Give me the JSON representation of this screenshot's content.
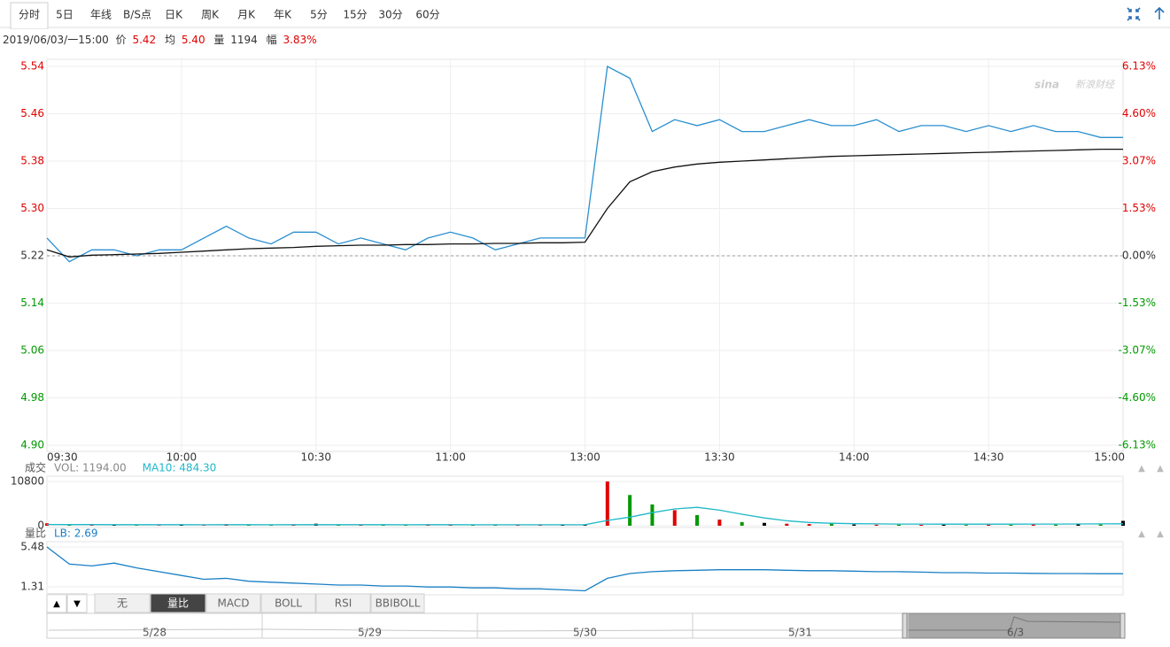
{
  "toolbar": {
    "tabs": [
      "分时",
      "5日",
      "年线",
      "B/S点",
      "日K",
      "周K",
      "月K",
      "年K",
      "5分",
      "15分",
      "30分",
      "60分"
    ],
    "active": 0
  },
  "info": {
    "datetime": "2019/06/03/一15:00",
    "price_label": "价",
    "price": "5.42",
    "avg_label": "均",
    "avg": "5.40",
    "volume_label": "量",
    "volume": "1194",
    "change_label": "幅",
    "change": "3.83%"
  },
  "watermark": "新浪财经",
  "chart_data": [
    {
      "type": "line",
      "categories": [
        "09:30",
        null,
        null,
        null,
        null,
        null,
        "10:00",
        null,
        null,
        null,
        null,
        null,
        "10:30",
        null,
        null,
        null,
        null,
        null,
        "11:00",
        null,
        null,
        null,
        null,
        null,
        "13:00",
        null,
        null,
        null,
        null,
        null,
        "13:30",
        null,
        null,
        null,
        null,
        null,
        "14:00",
        null,
        null,
        null,
        null,
        null,
        "14:30",
        null,
        null,
        null,
        null,
        null,
        "15:00"
      ],
      "series": [
        {
          "color": "#2a8fd0",
          "values": [
            5.25,
            5.21,
            5.23,
            5.23,
            5.22,
            5.23,
            5.23,
            5.25,
            5.27,
            5.25,
            5.24,
            5.26,
            5.26,
            5.24,
            5.25,
            5.24,
            5.23,
            5.25,
            5.26,
            5.25,
            5.23,
            5.24,
            5.25,
            5.25,
            5.25,
            5.54,
            5.52,
            5.43,
            5.45,
            5.44,
            5.45,
            5.43,
            5.43,
            5.44,
            5.45,
            5.44,
            5.44,
            5.45,
            5.43,
            5.44,
            5.44,
            5.43,
            5.44,
            5.43,
            5.44,
            5.43,
            5.43,
            5.42,
            5.42
          ]
        },
        {
          "color": "#111111",
          "values": [
            5.23,
            5.218,
            5.221,
            5.222,
            5.223,
            5.224,
            5.226,
            5.228,
            5.23,
            5.232,
            5.233,
            5.234,
            5.236,
            5.237,
            5.238,
            5.238,
            5.239,
            5.239,
            5.24,
            5.24,
            5.241,
            5.241,
            5.242,
            5.242,
            5.243,
            5.3,
            5.345,
            5.362,
            5.37,
            5.375,
            5.378,
            5.38,
            5.382,
            5.384,
            5.386,
            5.388,
            5.389,
            5.39,
            5.391,
            5.392,
            5.393,
            5.394,
            5.395,
            5.396,
            5.397,
            5.398,
            5.399,
            5.4,
            5.4
          ]
        }
      ],
      "baseline": 5.22,
      "ylim": [
        4.9,
        5.54
      ],
      "yticks": [
        5.54,
        5.46,
        5.38,
        {
          "value": 5.3,
          "label": "5.30"
        },
        5.22,
        5.14,
        5.06,
        4.98,
        {
          "value": 4.9,
          "label": "4.90"
        }
      ],
      "y2lim": [
        -6.13,
        6.13
      ],
      "y2ticks": [
        {
          "value": 6.13,
          "label": "6.13%"
        },
        {
          "value": 4.6,
          "label": "4.60%"
        },
        {
          "value": 3.07,
          "label": "3.07%"
        },
        {
          "value": 1.53,
          "label": "1.53%"
        },
        {
          "value": 0,
          "label": "0.00%"
        },
        {
          "value": -1.53,
          "label": "-1.53%"
        },
        {
          "value": -3.07,
          "label": "-3.07%"
        },
        {
          "value": -4.6,
          "label": "-4.60%"
        },
        {
          "value": -6.13,
          "label": "-6.13%"
        }
      ],
      "up_color": "#e00000",
      "down_color": "#009900",
      "flat_color": "#333333",
      "grid": true
    },
    {
      "type": "bar",
      "title": "成交",
      "series": [
        {
          "label": "VOL: 1194.00",
          "values": [
            600,
            200,
            150,
            300,
            100,
            80,
            120,
            90,
            400,
            150,
            100,
            200,
            500,
            180,
            220,
            160,
            140,
            260,
            200,
            150,
            240,
            180,
            160,
            200,
            300,
            10800,
            7500,
            5200,
            3800,
            2600,
            1500,
            900,
            700,
            500,
            400,
            600,
            300,
            250,
            280,
            220,
            300,
            200,
            260,
            240,
            300,
            280,
            350,
            300,
            1194
          ]
        },
        {
          "label": "MA10: 484.30",
          "type": "line",
          "color": "#1fb8c8",
          "values": [
            300,
            290,
            280,
            270,
            260,
            250,
            250,
            240,
            260,
            250,
            240,
            250,
            270,
            260,
            250,
            250,
            240,
            250,
            250,
            240,
            240,
            240,
            230,
            240,
            250,
            1300,
            2100,
            3200,
            4100,
            4500,
            3800,
            2800,
            1900,
            1200,
            800,
            600,
            500,
            450,
            420,
            400,
            390,
            380,
            380,
            390,
            400,
            410,
            430,
            450,
            484.3
          ]
        }
      ],
      "ylim": [
        0,
        10800
      ],
      "yticks": [
        10800,
        0
      ],
      "up_color": "#e00000",
      "down_color": "#009900",
      "flat_color": "#000000",
      "label_colors": [
        "#888888",
        "#1fb8c8"
      ]
    },
    {
      "type": "line",
      "title": "量比",
      "series": [
        {
          "label": "LB: 2.69",
          "color": "#1a7fc4",
          "values": [
            5.48,
            3.7,
            3.5,
            3.8,
            3.3,
            2.9,
            2.5,
            2.1,
            2.2,
            1.9,
            1.8,
            1.7,
            1.6,
            1.5,
            1.5,
            1.4,
            1.4,
            1.3,
            1.3,
            1.2,
            1.2,
            1.1,
            1.1,
            1.0,
            0.9,
            2.2,
            2.7,
            2.9,
            3.0,
            3.05,
            3.1,
            3.1,
            3.1,
            3.05,
            3.0,
            3.0,
            2.95,
            2.9,
            2.9,
            2.85,
            2.8,
            2.8,
            2.75,
            2.75,
            2.72,
            2.7,
            2.7,
            2.69,
            2.69
          ]
        }
      ],
      "ylim": [
        0.48,
        6.04
      ],
      "yticks": [
        5.48,
        1.31
      ]
    }
  ],
  "indicator_tabs": {
    "tabs": [
      "无",
      "量比",
      "MACD",
      "BOLL",
      "RSI",
      "BBIBOLL"
    ],
    "active": 1
  },
  "navigator": {
    "dates": [
      "5/28",
      "5/29",
      "5/30",
      "5/31",
      "6/3"
    ]
  }
}
